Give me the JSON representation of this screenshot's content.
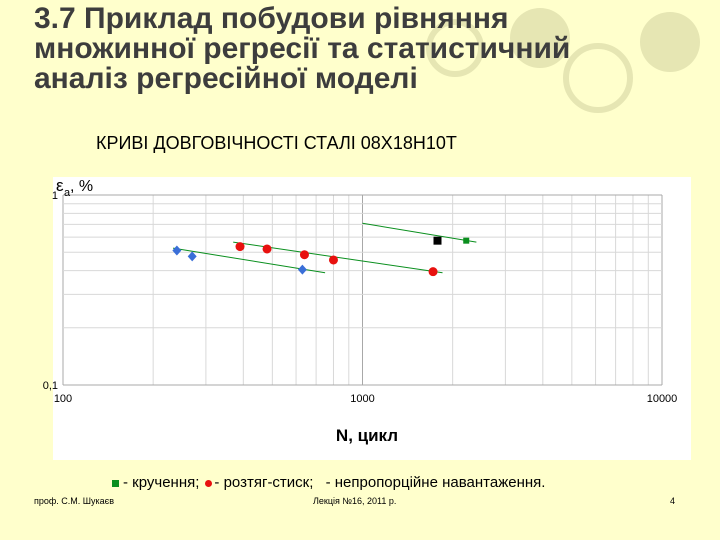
{
  "title": {
    "line1": "3.7 Приклад побудови рівняння",
    "line2": "множинної регресії та статистичний",
    "line3": "аналіз регресійної моделі"
  },
  "subtitle": "КРИВІ ДОВГОВІЧНОСТІ СТАЛІ  08Х18Н10Т",
  "colors": {
    "background": "#ffffcc",
    "decor_circle": "#e6e6b3",
    "green": "#0a8f1e",
    "red": "#e8110f",
    "blue": "#3a6fd8",
    "black": "#000000"
  },
  "chart_data": {
    "type": "scatter",
    "xscale": "log",
    "yscale": "log",
    "xlim": [
      100,
      10000
    ],
    "ylim": [
      0.1,
      1
    ],
    "xticks": [
      "100",
      "1000",
      "10000"
    ],
    "yticks": [
      "0,1",
      "1"
    ],
    "xlabel": "N, цикл",
    "ylabel_main": "ε",
    "ylabel_sub": "a",
    "ylabel_suffix": ", %",
    "grid": true,
    "series": [
      {
        "marker": "diamond",
        "color": "#3a6fd8",
        "points": [
          [
            240,
            0.51
          ],
          [
            270,
            0.475
          ],
          [
            630,
            0.405
          ]
        ],
        "trend": [
          [
            233,
            0.525
          ],
          [
            750,
            0.39
          ]
        ]
      },
      {
        "marker": "circle",
        "color": "#e8110f",
        "points": [
          [
            390,
            0.535
          ],
          [
            480,
            0.52
          ],
          [
            640,
            0.485
          ],
          [
            800,
            0.455
          ],
          [
            1720,
            0.395
          ]
        ],
        "trend": [
          [
            370,
            0.565
          ],
          [
            1850,
            0.39
          ]
        ]
      },
      {
        "marker": "square",
        "color": "#000000",
        "points": [
          [
            1780,
            0.575
          ]
        ],
        "trend": []
      },
      {
        "marker": "square",
        "color": "#0a8f1e",
        "points": [
          [
            2220,
            0.575
          ]
        ],
        "trend": [
          [
            1000,
            0.71
          ],
          [
            2400,
            0.565
          ]
        ]
      }
    ]
  },
  "legend": {
    "torsion": "- кручення;",
    "tension": "- розтяг-стиск;",
    "nonprop": "- непропорційне навантаження."
  },
  "footer": {
    "author": "проф. С.М. Шукаєв",
    "lecture": "Лекція №16, 2011 р.",
    "page": "4"
  }
}
